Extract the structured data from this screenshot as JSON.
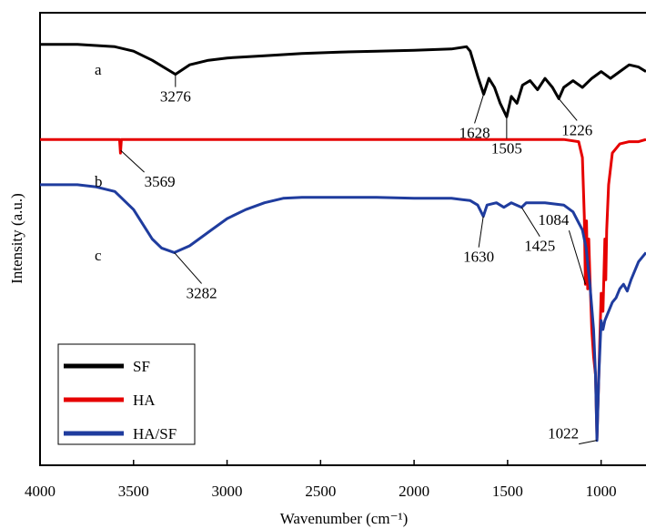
{
  "chart_data": {
    "type": "line",
    "title": "",
    "xlabel": "Wavenumber (cm⁻¹)",
    "ylabel": "Intensity (a.u.)",
    "xlim": [
      4000,
      760
    ],
    "x_reversed": true,
    "y_scale": "arbitrary (offset traces)",
    "xticks": [
      4000,
      3500,
      3000,
      2500,
      2000,
      1500,
      1000
    ],
    "grid": false,
    "legend_position": "bottom-left",
    "series": [
      {
        "name": "SF",
        "tag": "a",
        "color": "#000000",
        "points": [
          [
            4000,
            0.93
          ],
          [
            3800,
            0.93
          ],
          [
            3600,
            0.925
          ],
          [
            3500,
            0.915
          ],
          [
            3400,
            0.895
          ],
          [
            3300,
            0.87
          ],
          [
            3276,
            0.864
          ],
          [
            3200,
            0.885
          ],
          [
            3100,
            0.895
          ],
          [
            3000,
            0.9
          ],
          [
            2800,
            0.905
          ],
          [
            2600,
            0.91
          ],
          [
            2400,
            0.913
          ],
          [
            2200,
            0.915
          ],
          [
            2000,
            0.917
          ],
          [
            1800,
            0.92
          ],
          [
            1720,
            0.925
          ],
          [
            1700,
            0.915
          ],
          [
            1660,
            0.86
          ],
          [
            1628,
            0.82
          ],
          [
            1600,
            0.855
          ],
          [
            1570,
            0.835
          ],
          [
            1540,
            0.8
          ],
          [
            1505,
            0.77
          ],
          [
            1480,
            0.815
          ],
          [
            1450,
            0.8
          ],
          [
            1420,
            0.84
          ],
          [
            1380,
            0.85
          ],
          [
            1340,
            0.83
          ],
          [
            1300,
            0.855
          ],
          [
            1260,
            0.835
          ],
          [
            1226,
            0.81
          ],
          [
            1200,
            0.835
          ],
          [
            1150,
            0.85
          ],
          [
            1100,
            0.835
          ],
          [
            1050,
            0.855
          ],
          [
            1000,
            0.87
          ],
          [
            950,
            0.855
          ],
          [
            900,
            0.87
          ],
          [
            850,
            0.885
          ],
          [
            800,
            0.88
          ],
          [
            760,
            0.87
          ]
        ]
      },
      {
        "name": "HA",
        "tag": "b",
        "color": "#e60000",
        "points": [
          [
            4000,
            0.72
          ],
          [
            3600,
            0.72
          ],
          [
            3575,
            0.72
          ],
          [
            3570,
            0.69
          ],
          [
            3565,
            0.72
          ],
          [
            3400,
            0.72
          ],
          [
            3000,
            0.72
          ],
          [
            2500,
            0.72
          ],
          [
            2000,
            0.72
          ],
          [
            1500,
            0.72
          ],
          [
            1200,
            0.72
          ],
          [
            1120,
            0.715
          ],
          [
            1100,
            0.68
          ],
          [
            1090,
            0.55
          ],
          [
            1084,
            0.4
          ],
          [
            1078,
            0.54
          ],
          [
            1072,
            0.39
          ],
          [
            1066,
            0.5
          ],
          [
            1060,
            0.42
          ],
          [
            1050,
            0.3
          ],
          [
            1040,
            0.24
          ],
          [
            1030,
            0.2
          ],
          [
            1022,
            0.06
          ],
          [
            1012,
            0.2
          ],
          [
            1000,
            0.38
          ],
          [
            990,
            0.34
          ],
          [
            980,
            0.5
          ],
          [
            975,
            0.41
          ],
          [
            970,
            0.52
          ],
          [
            960,
            0.62
          ],
          [
            940,
            0.69
          ],
          [
            900,
            0.71
          ],
          [
            850,
            0.715
          ],
          [
            800,
            0.715
          ],
          [
            760,
            0.72
          ]
        ]
      },
      {
        "name": "HA/SF",
        "tag": "c",
        "color": "#1f3c9e",
        "points": [
          [
            4000,
            0.62
          ],
          [
            3800,
            0.62
          ],
          [
            3700,
            0.615
          ],
          [
            3600,
            0.605
          ],
          [
            3500,
            0.565
          ],
          [
            3400,
            0.5
          ],
          [
            3350,
            0.48
          ],
          [
            3282,
            0.47
          ],
          [
            3200,
            0.485
          ],
          [
            3100,
            0.515
          ],
          [
            3000,
            0.545
          ],
          [
            2900,
            0.565
          ],
          [
            2800,
            0.58
          ],
          [
            2700,
            0.59
          ],
          [
            2600,
            0.592
          ],
          [
            2400,
            0.592
          ],
          [
            2200,
            0.592
          ],
          [
            2000,
            0.59
          ],
          [
            1800,
            0.59
          ],
          [
            1700,
            0.585
          ],
          [
            1660,
            0.575
          ],
          [
            1630,
            0.55
          ],
          [
            1610,
            0.575
          ],
          [
            1560,
            0.58
          ],
          [
            1520,
            0.57
          ],
          [
            1480,
            0.58
          ],
          [
            1425,
            0.57
          ],
          [
            1400,
            0.58
          ],
          [
            1300,
            0.58
          ],
          [
            1200,
            0.575
          ],
          [
            1150,
            0.56
          ],
          [
            1100,
            0.52
          ],
          [
            1080,
            0.48
          ],
          [
            1060,
            0.4
          ],
          [
            1040,
            0.3
          ],
          [
            1030,
            0.2
          ],
          [
            1022,
            0.055
          ],
          [
            1012,
            0.2
          ],
          [
            1000,
            0.32
          ],
          [
            990,
            0.3
          ],
          [
            980,
            0.32
          ],
          [
            960,
            0.34
          ],
          [
            940,
            0.36
          ],
          [
            920,
            0.37
          ],
          [
            900,
            0.39
          ],
          [
            880,
            0.4
          ],
          [
            860,
            0.385
          ],
          [
            840,
            0.41
          ],
          [
            800,
            0.45
          ],
          [
            760,
            0.47
          ]
        ]
      }
    ],
    "annotations": [
      {
        "text": "3276",
        "x": 3276,
        "series": "SF"
      },
      {
        "text": "1628",
        "x": 1628,
        "series": "SF"
      },
      {
        "text": "1505",
        "x": 1505,
        "series": "SF"
      },
      {
        "text": "1226",
        "x": 1226,
        "series": "SF"
      },
      {
        "text": "3569",
        "x": 3569,
        "series": "HA"
      },
      {
        "text": "1084",
        "x": 1084,
        "series": "HA"
      },
      {
        "text": "3282",
        "x": 3282,
        "series": "HA/SF"
      },
      {
        "text": "1630",
        "x": 1630,
        "series": "HA/SF"
      },
      {
        "text": "1425",
        "x": 1425,
        "series": "HA/SF"
      },
      {
        "text": "1022",
        "x": 1022,
        "series": "HA/SF"
      }
    ]
  }
}
